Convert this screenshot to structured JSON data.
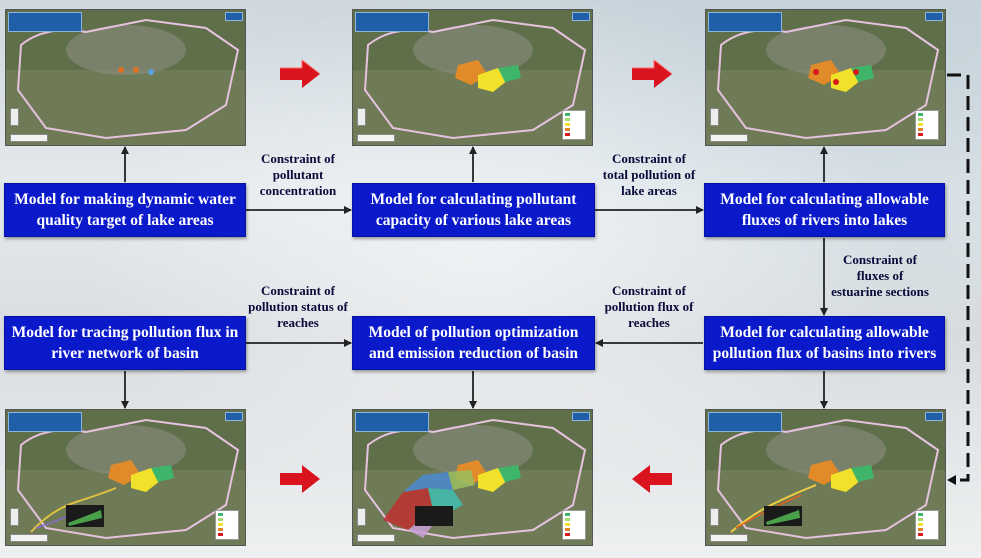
{
  "boxes": {
    "b1": "Model for making dynamic water quality target of lake areas",
    "b2": "Model for calculating pollutant capacity of various lake areas",
    "b3": "Model for calculating allowable fluxes of rivers into lakes",
    "b4": "Model for tracing  pollution flux in river network of basin",
    "b5": "Model of pollution optimization and emission reduction of basin",
    "b6": "Model for calculating allowable pollution flux of basins into rivers"
  },
  "labels": {
    "l1": "Constraint of pollutant concentration",
    "l2": "Constraint of total pollution of lake areas",
    "l3": "Constraint of fluxes of estuarine sections",
    "l4": "Constraint of pollution status of reaches",
    "l5": "Constraint of pollution flux of reaches"
  },
  "colors": {
    "box_fill": "#0a1acb",
    "box_text": "#ffffff",
    "arrow_red": "#d9141e",
    "connector": "#222222"
  },
  "screenshots": [
    {
      "name": "map-basin-base"
    },
    {
      "name": "map-lake-areas"
    },
    {
      "name": "map-river-inflows"
    },
    {
      "name": "map-pollution-tracing"
    },
    {
      "name": "map-optimization-zones"
    },
    {
      "name": "map-basin-flux"
    }
  ]
}
